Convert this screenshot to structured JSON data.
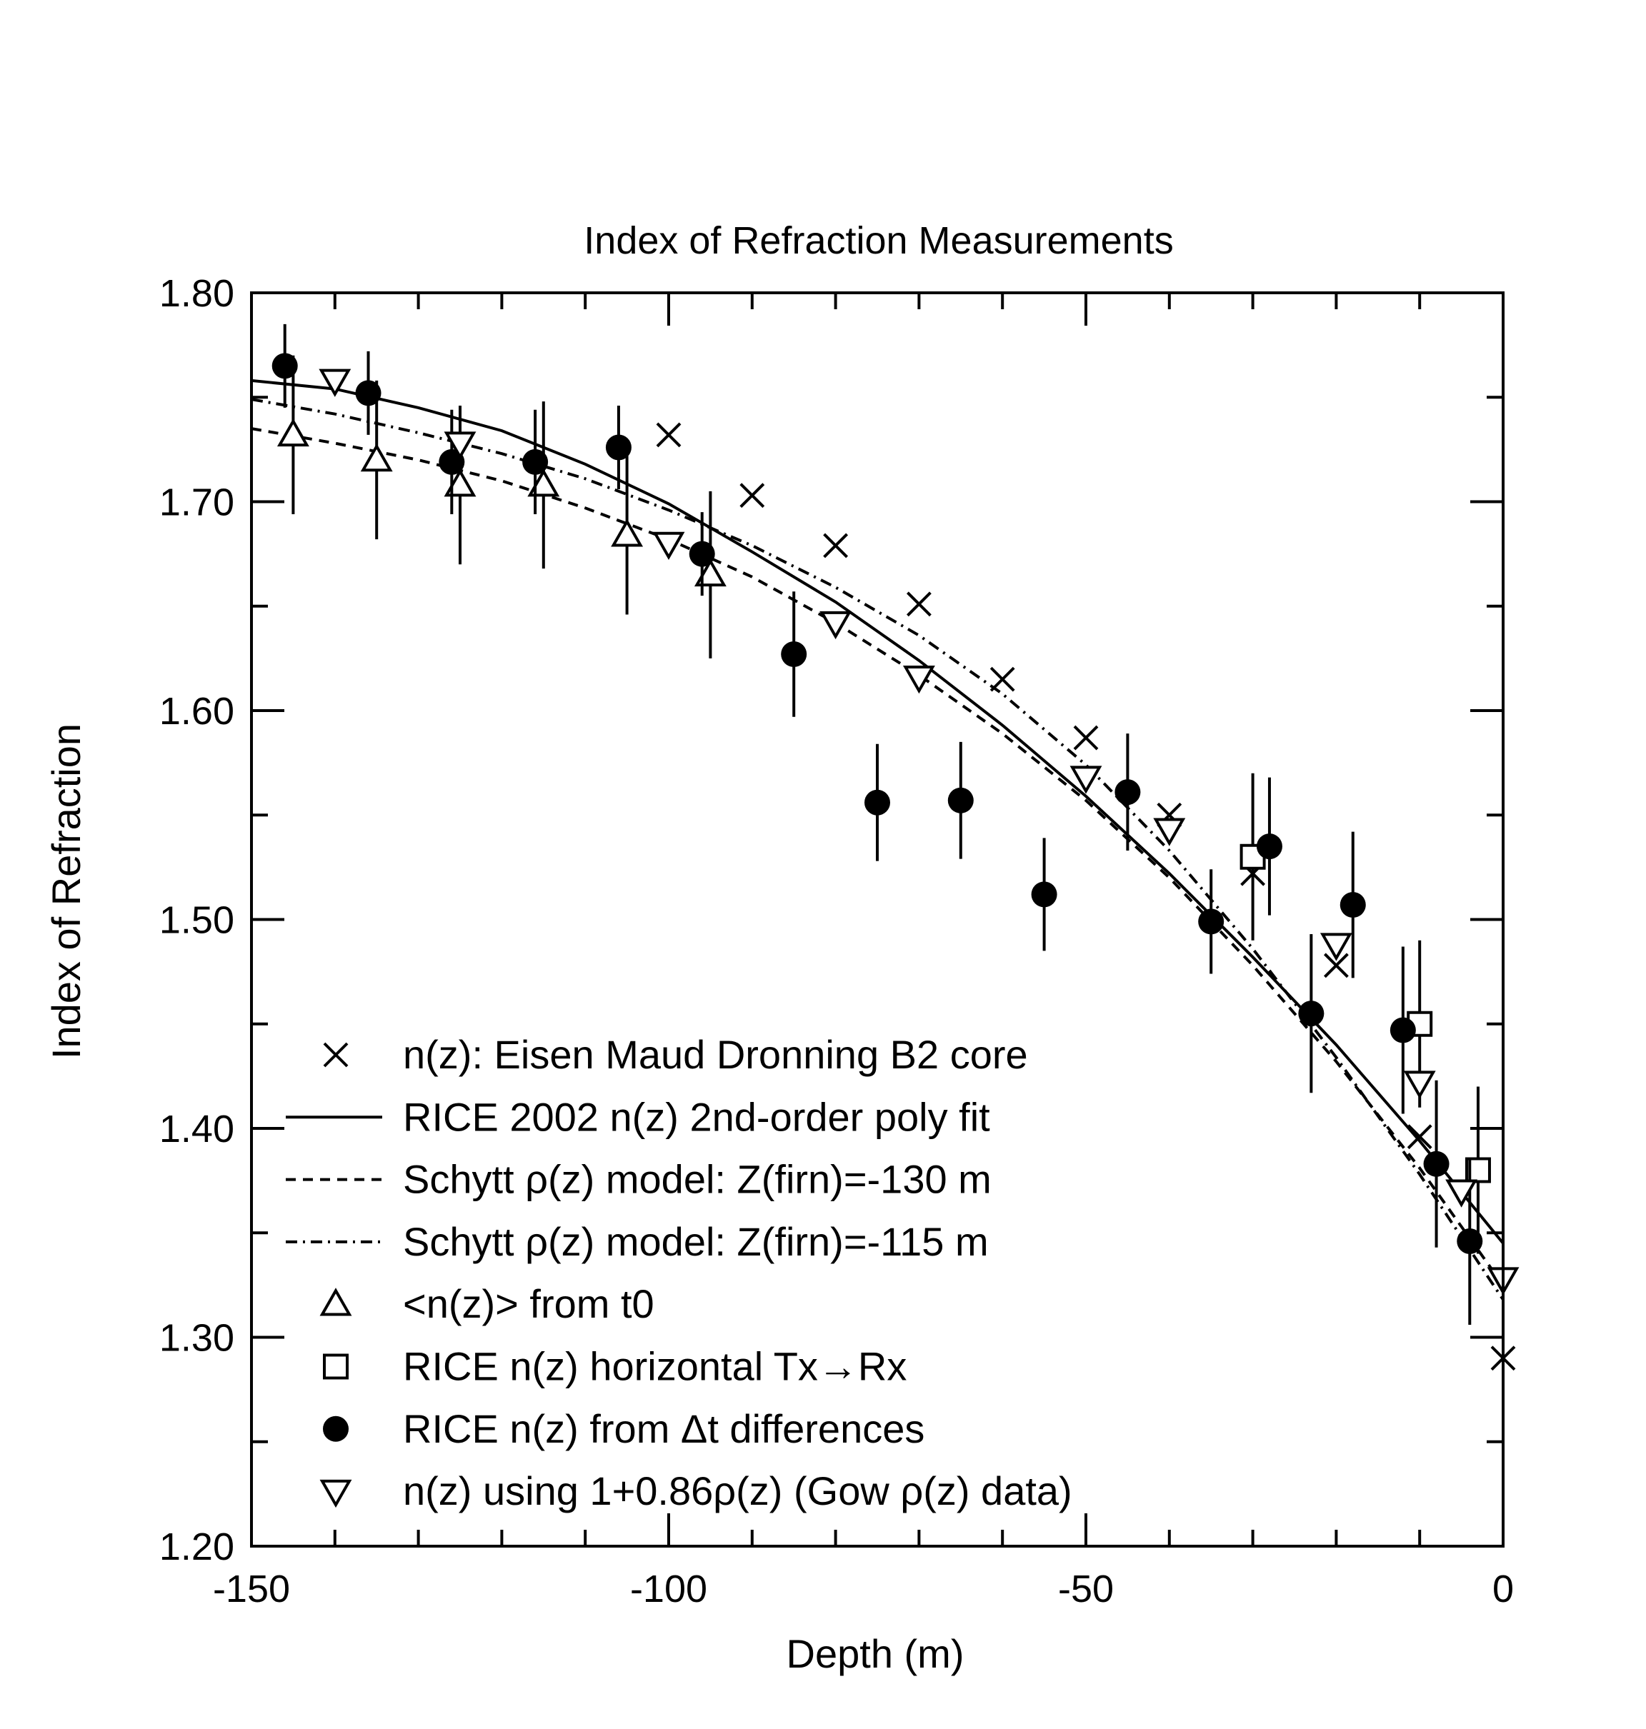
{
  "chart_data": {
    "type": "scatter",
    "title": "Index of Refraction Measurements",
    "xlabel": "Depth (m)",
    "ylabel": "Index of Refraction",
    "xlim": [
      -150,
      0
    ],
    "ylim": [
      1.2,
      1.8
    ],
    "x_ticks": [
      "-150",
      "-100",
      "-50",
      "0"
    ],
    "y_ticks": [
      "1.20",
      "1.30",
      "1.40",
      "1.50",
      "1.60",
      "1.70",
      "1.80"
    ],
    "grid": false,
    "legend_position": "bottom-left",
    "legend": [
      {
        "marker": "cross",
        "label": "n(z): Eisen Maud Dronning B2 core"
      },
      {
        "marker": "solid-line",
        "label": "RICE 2002 n(z) 2nd-order poly fit"
      },
      {
        "marker": "dashed-line",
        "label": "Schytt ρ(z) model: Z(firn)=-130 m"
      },
      {
        "marker": "dashdot-line",
        "label": "Schytt ρ(z) model: Z(firn)=-115 m"
      },
      {
        "marker": "triangle-up",
        "label": "<n(z)> from t0"
      },
      {
        "marker": "square",
        "label": "RICE n(z) horizontal Tx→Rx"
      },
      {
        "marker": "filled-circle",
        "label": "RICE n(z) from Δt differences"
      },
      {
        "marker": "triangle-down",
        "label": "n(z) using 1+0.86ρ(z) (Gow ρ(z) data)"
      }
    ],
    "series": [
      {
        "marker": "cross",
        "points": [
          [
            -100,
            1.732
          ],
          [
            -90,
            1.703
          ],
          [
            -80,
            1.679
          ],
          [
            -70,
            1.651
          ],
          [
            -60,
            1.615
          ],
          [
            -50,
            1.587
          ],
          [
            -40,
            1.55
          ],
          [
            -30,
            1.522
          ],
          [
            -20,
            1.478
          ],
          [
            -10,
            1.396
          ],
          [
            0,
            1.29
          ]
        ]
      },
      {
        "marker": "solid-line",
        "points": [
          [
            -150,
            1.758
          ],
          [
            -140,
            1.754
          ],
          [
            -130,
            1.745
          ],
          [
            -120,
            1.734
          ],
          [
            -110,
            1.718
          ],
          [
            -100,
            1.699
          ],
          [
            -90,
            1.676
          ],
          [
            -80,
            1.652
          ],
          [
            -70,
            1.624
          ],
          [
            -60,
            1.593
          ],
          [
            -50,
            1.559
          ],
          [
            -40,
            1.522
          ],
          [
            -30,
            1.482
          ],
          [
            -20,
            1.44
          ],
          [
            -10,
            1.394
          ],
          [
            0,
            1.345
          ]
        ]
      },
      {
        "marker": "dashed-line",
        "points": [
          [
            -150,
            1.735
          ],
          [
            -140,
            1.728
          ],
          [
            -130,
            1.72
          ],
          [
            -120,
            1.71
          ],
          [
            -110,
            1.697
          ],
          [
            -100,
            1.682
          ],
          [
            -90,
            1.664
          ],
          [
            -80,
            1.642
          ],
          [
            -70,
            1.617
          ],
          [
            -60,
            1.589
          ],
          [
            -50,
            1.557
          ],
          [
            -40,
            1.52
          ],
          [
            -30,
            1.478
          ],
          [
            -20,
            1.432
          ],
          [
            -10,
            1.381
          ],
          [
            0,
            1.325
          ]
        ]
      },
      {
        "marker": "dashdot-line",
        "points": [
          [
            -150,
            1.749
          ],
          [
            -140,
            1.742
          ],
          [
            -130,
            1.733
          ],
          [
            -120,
            1.723
          ],
          [
            -110,
            1.711
          ],
          [
            -100,
            1.696
          ],
          [
            -90,
            1.679
          ],
          [
            -80,
            1.659
          ],
          [
            -70,
            1.636
          ],
          [
            -60,
            1.608
          ],
          [
            -50,
            1.574
          ],
          [
            -40,
            1.533
          ],
          [
            -30,
            1.486
          ],
          [
            -20,
            1.434
          ],
          [
            -10,
            1.378
          ],
          [
            0,
            1.318
          ]
        ]
      },
      {
        "marker": "triangle-up",
        "points": [
          [
            -145,
            1.732,
            0.038
          ],
          [
            -135,
            1.72,
            0.038
          ],
          [
            -125,
            1.708,
            0.038
          ],
          [
            -115,
            1.708,
            0.04
          ],
          [
            -105,
            1.684,
            0.038
          ],
          [
            -95,
            1.665,
            0.04
          ]
        ]
      },
      {
        "marker": "square",
        "points": [
          [
            -30,
            1.53,
            0.04
          ],
          [
            -10,
            1.45,
            0.04
          ],
          [
            -3,
            1.38,
            0.04
          ]
        ]
      },
      {
        "marker": "filled-circle",
        "points": [
          [
            -146,
            1.765,
            0.02
          ],
          [
            -136,
            1.752,
            0.02
          ],
          [
            -126,
            1.719,
            0.025
          ],
          [
            -116,
            1.719,
            0.025
          ],
          [
            -106,
            1.726,
            0.02
          ],
          [
            -96,
            1.675,
            0.02
          ],
          [
            -85,
            1.627,
            0.03
          ],
          [
            -75,
            1.556,
            0.028
          ],
          [
            -65,
            1.557,
            0.028
          ],
          [
            -55,
            1.512,
            0.027
          ],
          [
            -45,
            1.561,
            0.028
          ],
          [
            -35,
            1.499,
            0.025
          ],
          [
            -28,
            1.535,
            0.033
          ],
          [
            -23,
            1.455,
            0.038
          ],
          [
            -18,
            1.507,
            0.035
          ],
          [
            -12,
            1.447,
            0.04
          ],
          [
            -8,
            1.383,
            0.04
          ],
          [
            -4,
            1.346,
            0.04
          ]
        ]
      },
      {
        "marker": "triangle-down",
        "points": [
          [
            -140,
            1.758
          ],
          [
            -125,
            1.728
          ],
          [
            -100,
            1.68
          ],
          [
            -80,
            1.642
          ],
          [
            -70,
            1.616
          ],
          [
            -50,
            1.568
          ],
          [
            -40,
            1.543
          ],
          [
            -20,
            1.488
          ],
          [
            -10,
            1.422
          ],
          [
            -5,
            1.37
          ],
          [
            0,
            1.328
          ]
        ]
      }
    ]
  }
}
